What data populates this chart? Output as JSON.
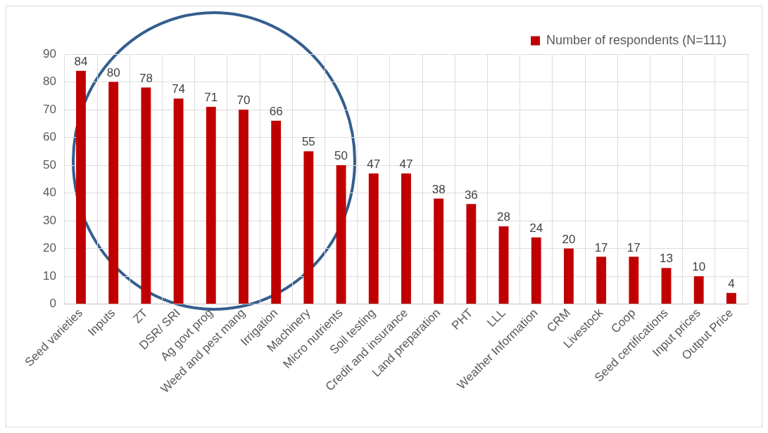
{
  "chart_data": {
    "type": "bar",
    "categories": [
      "Seed varieties",
      "Inputs",
      "ZT",
      "DSR/ SRI",
      "Ag govt prog",
      "Weed and pest mang",
      "Irrigation",
      "Machinery",
      "Micro nutrients",
      "Soil testing",
      "Credit and insurance",
      "Land preparation",
      "PHT",
      "LLL",
      "Weather Information",
      "CRM",
      "Livestock",
      "Coop",
      "Seed certifications",
      "Input prices",
      "Output Price"
    ],
    "series": [
      {
        "name": "Number of respondents (N=111)",
        "color": "#c00000",
        "values": [
          84,
          80,
          78,
          74,
          71,
          70,
          66,
          55,
          50,
          47,
          47,
          38,
          36,
          28,
          24,
          20,
          17,
          17,
          13,
          10,
          4
        ]
      }
    ],
    "ylim": [
      0,
      90
    ],
    "yticks": [
      0,
      10,
      20,
      30,
      40,
      50,
      60,
      70,
      80,
      90
    ],
    "grid": true,
    "legend": "top right",
    "data_labels": true
  }
}
